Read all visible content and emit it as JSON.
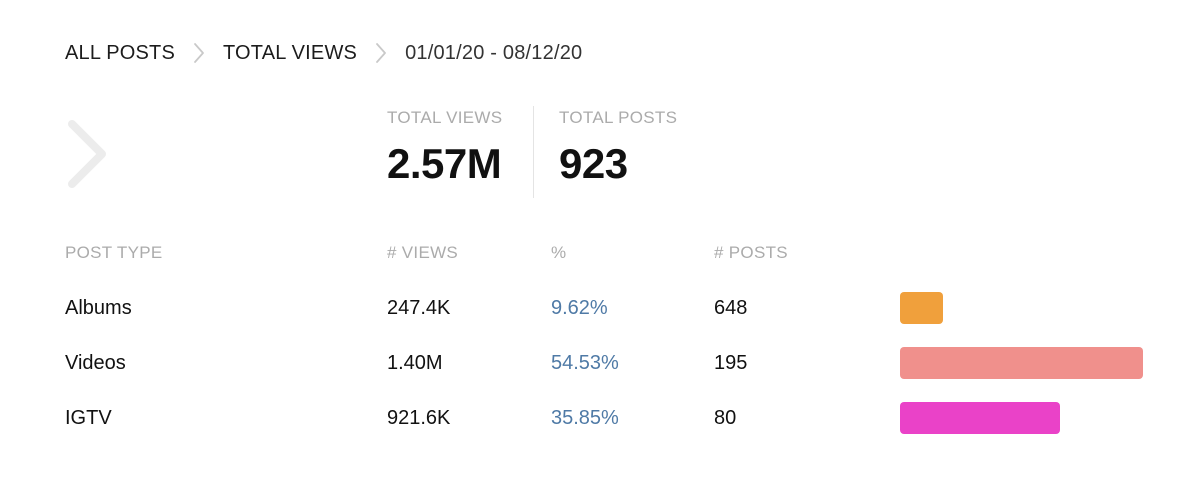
{
  "breadcrumb": {
    "items": [
      "ALL POSTS",
      "TOTAL VIEWS"
    ],
    "range": "01/01/20 - 08/12/20"
  },
  "icons": {
    "separator": "chevron-right-icon",
    "back": "chevron-right-icon"
  },
  "summary": {
    "views_label": "TOTAL VIEWS",
    "views_value": "2.57M",
    "posts_label": "TOTAL POSTS",
    "posts_value": "923"
  },
  "table": {
    "headers": {
      "type": "POST TYPE",
      "views": "# VIEWS",
      "pct": "%",
      "posts": "# POSTS"
    },
    "rows": [
      {
        "type": "Albums",
        "views": "247.4K",
        "pct": "9.62%",
        "posts": "648",
        "share": 0.0962,
        "color": "#f0a03c"
      },
      {
        "type": "Videos",
        "views": "1.40M",
        "pct": "54.53%",
        "posts": "195",
        "share": 0.5453,
        "color": "#f0908c"
      },
      {
        "type": "IGTV",
        "views": "921.6K",
        "pct": "35.85%",
        "posts": "80",
        "share": 0.3585,
        "color": "#ea42c8"
      }
    ]
  },
  "colors": {
    "percent_text": "#4f7aa6",
    "muted_label": "#ababab"
  }
}
